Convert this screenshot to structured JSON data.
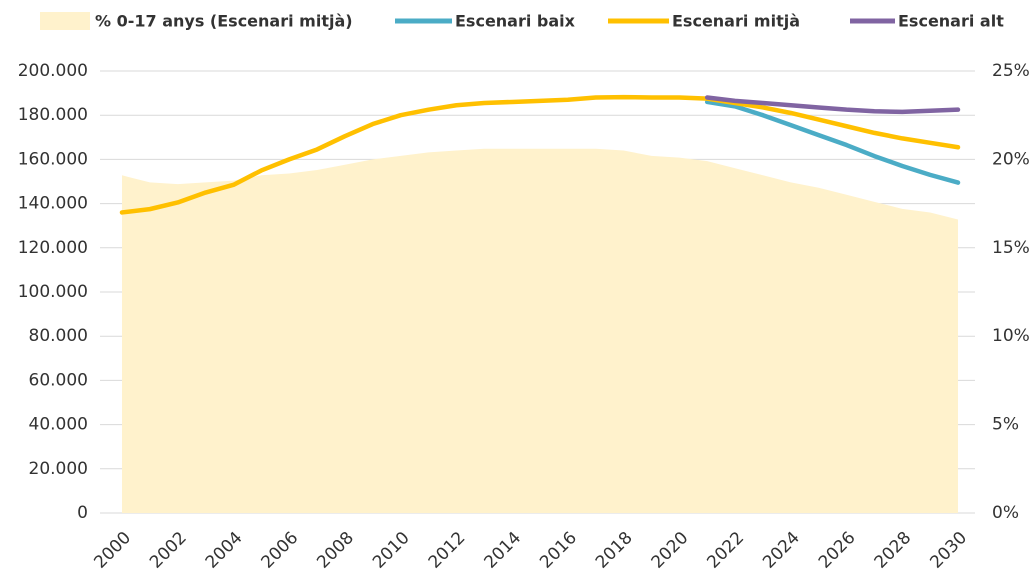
{
  "chart_data": {
    "type": "line",
    "x": [
      2000,
      2001,
      2002,
      2003,
      2004,
      2005,
      2006,
      2007,
      2008,
      2009,
      2010,
      2011,
      2012,
      2013,
      2014,
      2015,
      2016,
      2017,
      2018,
      2019,
      2020,
      2021,
      2022,
      2023,
      2024,
      2025,
      2026,
      2027,
      2028,
      2029,
      2030
    ],
    "xticks": [
      2000,
      2002,
      2004,
      2006,
      2008,
      2010,
      2012,
      2014,
      2016,
      2018,
      2020,
      2022,
      2024,
      2026,
      2028,
      2030
    ],
    "xlim": [
      2000,
      2030
    ],
    "ylim": [
      0,
      200000
    ],
    "yticks": [
      0,
      {
        "value": 20000,
        "label": "20.000"
      },
      {
        "value": 40000,
        "label": "40.000"
      },
      {
        "value": 60000,
        "label": "60.000"
      },
      {
        "value": 80000,
        "label": "80.000"
      },
      {
        "value": 100000,
        "label": "100.000"
      },
      {
        "value": 120000,
        "label": "120.000"
      },
      {
        "value": 140000,
        "label": "140.000"
      },
      {
        "value": 160000,
        "label": "160.000"
      },
      {
        "value": 180000,
        "label": "180.000"
      },
      {
        "value": 200000,
        "label": "200.000"
      }
    ],
    "y2lim": [
      0,
      25
    ],
    "y2ticks": [
      {
        "value": 0,
        "label": "0%"
      },
      {
        "value": 5,
        "label": "5%"
      },
      {
        "value": 10,
        "label": "10%"
      },
      {
        "value": 15,
        "label": "15%"
      },
      {
        "value": 20,
        "label": "20%"
      },
      {
        "value": 25,
        "label": "25%"
      }
    ],
    "grid": true,
    "series": [
      {
        "name": "% 0-17 anys (Escenari mitjà)",
        "type": "area",
        "axis": "y2",
        "color": "#fff2cc",
        "values": [
          19.1,
          18.7,
          18.6,
          18.7,
          18.8,
          19.1,
          19.2,
          19.4,
          19.7,
          20.0,
          20.2,
          20.4,
          20.5,
          20.6,
          20.6,
          20.6,
          20.6,
          20.6,
          20.5,
          20.2,
          20.1,
          19.9,
          19.5,
          19.1,
          18.7,
          18.4,
          18.0,
          17.6,
          17.2,
          17.0,
          16.6
        ]
      },
      {
        "name": "Escenari baix",
        "color": "#4bacc6",
        "values": [
          null,
          null,
          null,
          null,
          null,
          null,
          null,
          null,
          null,
          null,
          null,
          null,
          null,
          null,
          null,
          null,
          null,
          null,
          null,
          null,
          null,
          186000,
          184000,
          180000,
          175500,
          171000,
          166500,
          161500,
          157000,
          153000,
          149500
        ]
      },
      {
        "name": "Escenari mitjà",
        "color": "#ffc000",
        "values": [
          136000,
          137500,
          140500,
          145000,
          148500,
          155000,
          160000,
          164500,
          170500,
          176000,
          180000,
          182500,
          184500,
          185500,
          186000,
          186500,
          187000,
          188000,
          188200,
          188000,
          188000,
          187500,
          185500,
          183500,
          181000,
          178000,
          175000,
          172000,
          169500,
          167500,
          165500
        ]
      },
      {
        "name": "Escenari alt",
        "color": "#8064a2",
        "values": [
          null,
          null,
          null,
          null,
          null,
          null,
          null,
          null,
          null,
          null,
          null,
          null,
          null,
          null,
          null,
          null,
          null,
          null,
          null,
          null,
          null,
          188000,
          186500,
          185500,
          184500,
          183500,
          182500,
          181800,
          181500,
          182000,
          182500
        ]
      }
    ]
  }
}
